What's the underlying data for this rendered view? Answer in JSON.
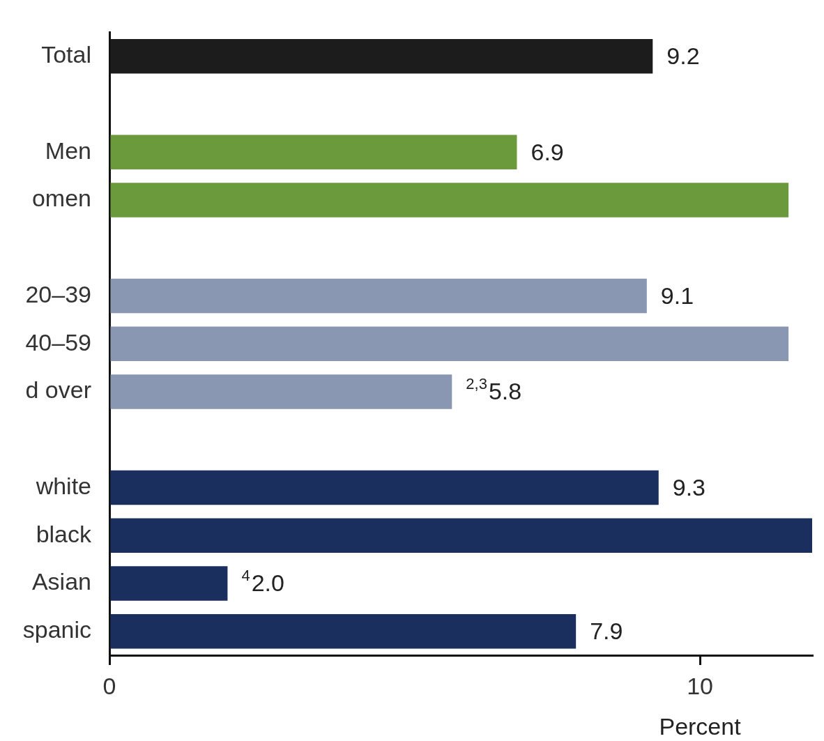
{
  "chart_data": {
    "type": "bar",
    "orientation": "horizontal",
    "xlabel": "Percent",
    "categories": [
      "Total",
      null,
      "Men",
      "omen",
      null,
      "20–39",
      "40–59",
      "d over",
      null,
      "white",
      "black",
      "Asian",
      "spanic"
    ],
    "values": [
      9.2,
      null,
      6.9,
      11.5,
      null,
      9.1,
      11.5,
      5.8,
      null,
      9.3,
      11.9,
      2.0,
      7.9
    ],
    "colors": [
      "#1c1c1c",
      "#ffffff",
      "#6a9a3c",
      "#6a9a3c",
      "#ffffff",
      "#8a97b2",
      "#8a97b2",
      "#8a97b2",
      "#ffffff",
      "#1b2f5f",
      "#1b2f5f",
      "#1b2f5f",
      "#1b2f5f"
    ],
    "value_labels": [
      "9.2",
      null,
      "6.9",
      null,
      null,
      "9.1",
      null,
      "$^{2,3}$5.8",
      null,
      "9.3",
      null,
      "$^{4}$2.0",
      "7.9"
    ],
    "xlim": [
      0,
      11.9
    ],
    "xticks": [
      0,
      10
    ]
  }
}
